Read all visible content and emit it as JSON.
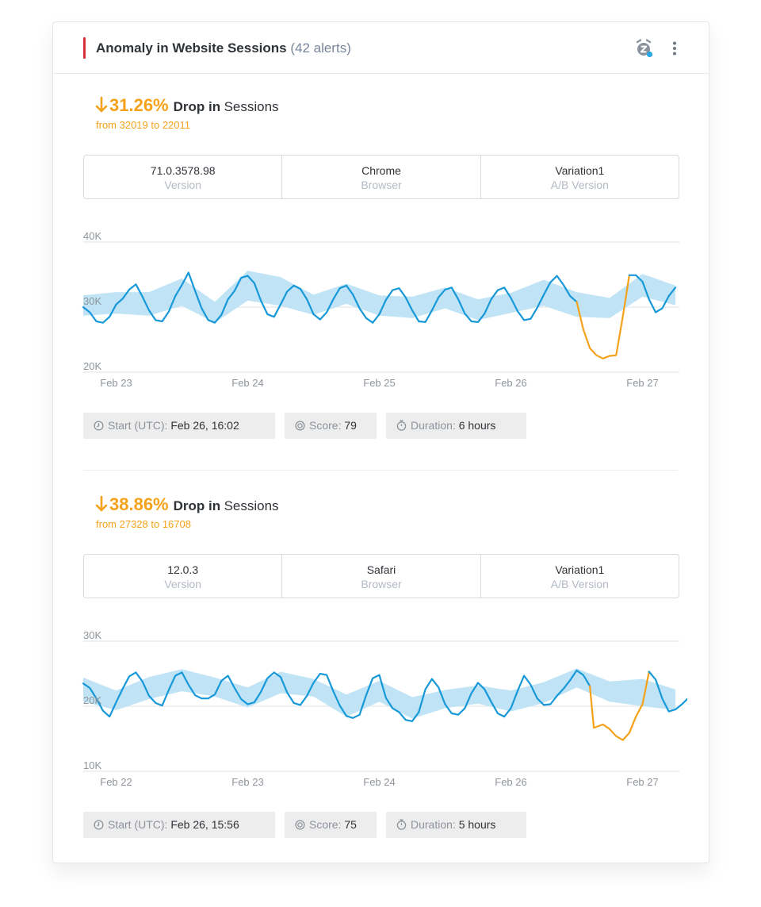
{
  "card": {
    "title": "Anomaly in Website Sessions",
    "alert_count": "(42 alerts)",
    "accent_color": "#d9303e",
    "icons": [
      "alarm-snooze-icon",
      "more-vertical-icon"
    ]
  },
  "anomalies": [
    {
      "percent": "31.26%",
      "drop_label": "Drop in",
      "metric": "Sessions",
      "from_text": "from 32019 to 22011",
      "dimensions": [
        {
          "value": "71.0.3578.98",
          "key": "Version"
        },
        {
          "value": "Chrome",
          "key": "Browser"
        },
        {
          "value": "Variation1",
          "key": "A/B Version"
        }
      ],
      "start_label": "Start (UTC):",
      "start_value": "Feb 26, 16:02",
      "score_label": "Score:",
      "score_value": "79",
      "duration_label": "Duration:",
      "duration_value": "6 hours"
    },
    {
      "percent": "38.86%",
      "drop_label": "Drop in",
      "metric": "Sessions",
      "from_text": "from 27328 to 16708",
      "dimensions": [
        {
          "value": "12.0.3",
          "key": "Version"
        },
        {
          "value": "Safari",
          "key": "Browser"
        },
        {
          "value": "Variation1",
          "key": "A/B Version"
        }
      ],
      "start_label": "Start (UTC):",
      "start_value": "Feb 26, 15:56",
      "score_label": "Score:",
      "score_value": "75",
      "duration_label": "Duration:",
      "duration_value": "5 hours"
    }
  ],
  "colors": {
    "accent": "#f5a21a",
    "series": "#1798d8",
    "band": "#bde3f6",
    "anomaly": "#f5a21a"
  },
  "chart_data": [
    {
      "type": "line",
      "title": "",
      "xlabel": "",
      "ylabel": "",
      "y_ticks": [
        "40K",
        "30K",
        "20K"
      ],
      "ylim": [
        20000,
        40000
      ],
      "x_tick_labels": [
        "Feb 23",
        "Feb 24",
        "Feb 25",
        "Feb 26",
        "Feb 27"
      ],
      "x_tick_positions": [
        0.25,
        1.25,
        2.25,
        3.25,
        4.25
      ],
      "x_range_days": [
        0,
        4.5
      ],
      "grid": true,
      "series": [
        {
          "values": [
            [
              0.0,
              30000
            ],
            [
              0.05,
              29200
            ],
            [
              0.1,
              27800
            ],
            [
              0.15,
              27600
            ],
            [
              0.2,
              28500
            ],
            [
              0.25,
              30400
            ],
            [
              0.3,
              31300
            ],
            [
              0.35,
              32700
            ],
            [
              0.4,
              33500
            ],
            [
              0.45,
              31600
            ],
            [
              0.5,
              29500
            ],
            [
              0.55,
              28000
            ],
            [
              0.6,
              27800
            ],
            [
              0.65,
              29300
            ],
            [
              0.7,
              31700
            ],
            [
              0.75,
              33400
            ],
            [
              0.8,
              35300
            ],
            [
              0.85,
              32500
            ],
            [
              0.9,
              29800
            ],
            [
              0.95,
              28000
            ],
            [
              1.0,
              27600
            ],
            [
              1.05,
              28800
            ],
            [
              1.1,
              31200
            ],
            [
              1.15,
              32500
            ],
            [
              1.2,
              34500
            ],
            [
              1.25,
              34800
            ],
            [
              1.3,
              33700
            ],
            [
              1.35,
              31000
            ],
            [
              1.4,
              28900
            ],
            [
              1.45,
              28500
            ],
            [
              1.5,
              30400
            ],
            [
              1.55,
              32400
            ],
            [
              1.6,
              33300
            ],
            [
              1.65,
              32800
            ],
            [
              1.7,
              31200
            ],
            [
              1.75,
              28900
            ],
            [
              1.8,
              28100
            ],
            [
              1.85,
              29200
            ],
            [
              1.9,
              31200
            ],
            [
              1.95,
              32900
            ],
            [
              2.0,
              33300
            ],
            [
              2.05,
              31900
            ],
            [
              2.1,
              29800
            ],
            [
              2.15,
              28300
            ],
            [
              2.2,
              27600
            ],
            [
              2.25,
              28900
            ],
            [
              2.3,
              31100
            ],
            [
              2.35,
              32600
            ],
            [
              2.4,
              32900
            ],
            [
              2.45,
              31500
            ],
            [
              2.5,
              29500
            ],
            [
              2.55,
              27800
            ],
            [
              2.6,
              27700
            ],
            [
              2.65,
              29500
            ],
            [
              2.7,
              31500
            ],
            [
              2.75,
              32700
            ],
            [
              2.8,
              33000
            ],
            [
              2.85,
              31200
            ],
            [
              2.9,
              29000
            ],
            [
              2.95,
              27800
            ],
            [
              3.0,
              27700
            ],
            [
              3.05,
              29000
            ],
            [
              3.1,
              31200
            ],
            [
              3.15,
              32600
            ],
            [
              3.2,
              33000
            ],
            [
              3.25,
              31400
            ],
            [
              3.3,
              29400
            ],
            [
              3.35,
              28000
            ],
            [
              3.4,
              28200
            ],
            [
              3.45,
              29900
            ],
            [
              3.5,
              31900
            ],
            [
              3.55,
              33800
            ],
            [
              3.6,
              34800
            ],
            [
              3.65,
              33400
            ],
            [
              3.7,
              31700
            ],
            [
              3.75,
              30800
            ]
          ],
          "color": "#1798d8"
        },
        {
          "values": [
            [
              3.75,
              30800
            ],
            [
              3.8,
              26600
            ],
            [
              3.85,
              23700
            ],
            [
              3.9,
              22600
            ],
            [
              3.95,
              22100
            ],
            [
              4.0,
              22500
            ],
            [
              4.05,
              22600
            ],
            [
              4.1,
              28500
            ],
            [
              4.15,
              34900
            ]
          ],
          "color": "#f5a21a"
        },
        {
          "values": [
            [
              4.15,
              34900
            ],
            [
              4.2,
              34900
            ],
            [
              4.25,
              33900
            ],
            [
              4.3,
              31200
            ],
            [
              4.35,
              29200
            ],
            [
              4.4,
              29800
            ],
            [
              4.45,
              31700
            ],
            [
              4.5,
              33000
            ]
          ],
          "color": "#1798d8"
        }
      ],
      "expected_band": {
        "color": "#bde3f6",
        "values": [
          [
            0.0,
            28700,
            31800
          ],
          [
            0.25,
            29000,
            32300
          ],
          [
            0.5,
            28700,
            32300
          ],
          [
            0.75,
            30200,
            34400
          ],
          [
            1.0,
            27600,
            30800
          ],
          [
            1.25,
            31000,
            35600
          ],
          [
            1.5,
            30200,
            34600
          ],
          [
            1.75,
            28800,
            31900
          ],
          [
            2.0,
            30500,
            33600
          ],
          [
            2.25,
            28700,
            31800
          ],
          [
            2.5,
            28300,
            31600
          ],
          [
            2.75,
            29800,
            33000
          ],
          [
            3.0,
            28000,
            31200
          ],
          [
            3.25,
            29100,
            32200
          ],
          [
            3.5,
            30200,
            34200
          ],
          [
            3.75,
            28500,
            32300
          ],
          [
            4.0,
            28300,
            31400
          ],
          [
            4.25,
            31600,
            35100
          ],
          [
            4.5,
            30300,
            33300
          ]
        ]
      }
    },
    {
      "type": "line",
      "title": "",
      "xlabel": "",
      "ylabel": "",
      "y_ticks": [
        "30K",
        "20K",
        "10K"
      ],
      "ylim": [
        10000,
        30000
      ],
      "x_tick_labels": [
        "Feb 22",
        "Feb 23",
        "Feb 24",
        "Feb 26",
        "Feb 27"
      ],
      "x_tick_positions": [
        0.25,
        1.25,
        2.25,
        3.25,
        4.25
      ],
      "x_range_days": [
        0,
        4.5
      ],
      "grid": true,
      "series": [
        {
          "values": [
            [
              0.0,
              23500
            ],
            [
              0.05,
              22800
            ],
            [
              0.1,
              21200
            ],
            [
              0.15,
              19300
            ],
            [
              0.2,
              18400
            ],
            [
              0.25,
              20600
            ],
            [
              0.3,
              22700
            ],
            [
              0.35,
              24600
            ],
            [
              0.4,
              25200
            ],
            [
              0.45,
              23800
            ],
            [
              0.5,
              21600
            ],
            [
              0.55,
              20500
            ],
            [
              0.6,
              20100
            ],
            [
              0.65,
              22500
            ],
            [
              0.7,
              24700
            ],
            [
              0.75,
              25200
            ],
            [
              0.8,
              23300
            ],
            [
              0.85,
              21700
            ],
            [
              0.9,
              21200
            ],
            [
              0.95,
              21200
            ],
            [
              1.0,
              21800
            ],
            [
              1.05,
              23900
            ],
            [
              1.1,
              24700
            ],
            [
              1.15,
              22800
            ],
            [
              1.2,
              21100
            ],
            [
              1.25,
              20300
            ],
            [
              1.3,
              20600
            ],
            [
              1.35,
              22200
            ],
            [
              1.4,
              24300
            ],
            [
              1.45,
              25200
            ],
            [
              1.5,
              24500
            ],
            [
              1.55,
              22100
            ],
            [
              1.6,
              20500
            ],
            [
              1.65,
              20200
            ],
            [
              1.7,
              21600
            ],
            [
              1.75,
              23600
            ],
            [
              1.8,
              25000
            ],
            [
              1.85,
              24800
            ],
            [
              1.9,
              22300
            ],
            [
              1.95,
              20100
            ],
            [
              2.0,
              18500
            ],
            [
              2.05,
              18200
            ],
            [
              2.1,
              18700
            ],
            [
              2.15,
              21700
            ],
            [
              2.2,
              24300
            ],
            [
              2.25,
              24800
            ],
            [
              2.3,
              21300
            ],
            [
              2.35,
              19700
            ],
            [
              2.4,
              19100
            ],
            [
              2.45,
              17900
            ],
            [
              2.5,
              17700
            ],
            [
              2.55,
              19100
            ],
            [
              2.6,
              22600
            ],
            [
              2.65,
              24200
            ],
            [
              2.7,
              22900
            ],
            [
              2.75,
              20300
            ],
            [
              2.8,
              18900
            ],
            [
              2.85,
              18700
            ],
            [
              2.9,
              19700
            ],
            [
              2.95,
              22000
            ],
            [
              3.0,
              23600
            ],
            [
              3.05,
              22600
            ],
            [
              3.1,
              20700
            ],
            [
              3.15,
              18900
            ],
            [
              3.2,
              18400
            ],
            [
              3.25,
              19700
            ],
            [
              3.3,
              22300
            ],
            [
              3.35,
              24700
            ],
            [
              3.4,
              23300
            ],
            [
              3.45,
              21200
            ],
            [
              3.5,
              20200
            ],
            [
              3.55,
              20300
            ],
            [
              3.6,
              21600
            ],
            [
              3.65,
              22700
            ],
            [
              3.7,
              24000
            ],
            [
              3.75,
              25500
            ],
            [
              3.8,
              24800
            ],
            [
              3.85,
              23100
            ]
          ],
          "color": "#1798d8"
        },
        {
          "values": [
            [
              3.85,
              23100
            ],
            [
              3.88,
              16700
            ],
            [
              3.95,
              17200
            ],
            [
              4.0,
              16500
            ],
            [
              4.05,
              15400
            ],
            [
              4.1,
              14800
            ],
            [
              4.15,
              15900
            ],
            [
              4.2,
              18400
            ],
            [
              4.25,
              20300
            ],
            [
              4.3,
              25300
            ]
          ],
          "color": "#f5a21a"
        },
        {
          "values": [
            [
              4.3,
              25300
            ],
            [
              4.35,
              24100
            ],
            [
              4.4,
              21200
            ],
            [
              4.45,
              19200
            ],
            [
              4.5,
              19500
            ],
            [
              4.55,
              20300
            ],
            [
              4.6,
              21300
            ]
          ],
          "color": "#1798d8"
        }
      ],
      "expected_band": {
        "color": "#bde3f6",
        "values": [
          [
            0.0,
            20700,
            24400
          ],
          [
            0.25,
            19400,
            22400
          ],
          [
            0.5,
            21100,
            24500
          ],
          [
            0.75,
            22300,
            25700
          ],
          [
            1.0,
            21500,
            24400
          ],
          [
            1.25,
            19800,
            22900
          ],
          [
            1.5,
            22000,
            25300
          ],
          [
            1.75,
            21500,
            24200
          ],
          [
            2.0,
            18400,
            21800
          ],
          [
            2.25,
            20700,
            23900
          ],
          [
            2.5,
            18100,
            21400
          ],
          [
            2.75,
            19700,
            22500
          ],
          [
            3.0,
            20400,
            23200
          ],
          [
            3.25,
            19200,
            22400
          ],
          [
            3.5,
            20500,
            23700
          ],
          [
            3.75,
            22900,
            25800
          ],
          [
            4.0,
            20700,
            23800
          ],
          [
            4.25,
            20000,
            24200
          ],
          [
            4.5,
            19400,
            22600
          ]
        ]
      }
    }
  ]
}
